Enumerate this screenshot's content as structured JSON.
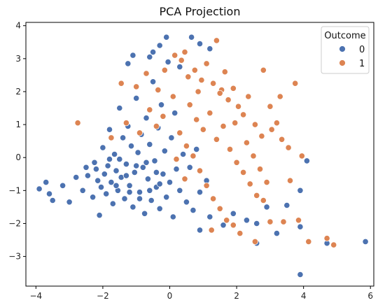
{
  "chart_data": {
    "type": "scatter",
    "title": "PCA Projection",
    "xlabel": "",
    "ylabel": "",
    "xlim": [
      -4.3,
      6.1
    ],
    "ylim": [
      -3.9,
      4.1
    ],
    "xticks": [
      -4,
      -2,
      0,
      2,
      4,
      6
    ],
    "yticks": [
      -3,
      -2,
      -1,
      0,
      1,
      2,
      3,
      4
    ],
    "grid": false,
    "legend": {
      "title": "Outcome",
      "position": "top-right"
    },
    "series": [
      {
        "name": "0",
        "color": "#4c72b0",
        "points": [
          [
            -3.9,
            -0.95
          ],
          [
            -3.7,
            -0.75
          ],
          [
            -3.6,
            -1.1
          ],
          [
            -3.5,
            -1.3
          ],
          [
            -3.2,
            -0.85
          ],
          [
            -3.0,
            -1.35
          ],
          [
            -2.8,
            -0.6
          ],
          [
            -2.6,
            -1.0
          ],
          [
            -2.5,
            -0.3
          ],
          [
            -2.45,
            -0.55
          ],
          [
            -2.3,
            -1.2
          ],
          [
            -2.25,
            -0.15
          ],
          [
            -2.15,
            -0.7
          ],
          [
            -2.1,
            -1.75
          ],
          [
            -2.05,
            -0.9
          ],
          [
            -2.0,
            0.3
          ],
          [
            -1.95,
            -0.5
          ],
          [
            -1.9,
            -1.1
          ],
          [
            -1.85,
            -0.25
          ],
          [
            -1.8,
            0.85
          ],
          [
            -1.75,
            -0.75
          ],
          [
            -1.7,
            -1.4
          ],
          [
            -1.65,
            0.1
          ],
          [
            -1.6,
            -0.4
          ],
          [
            -1.55,
            -1.0
          ],
          [
            -1.5,
            1.5
          ],
          [
            -1.45,
            -0.6
          ],
          [
            -1.4,
            0.6
          ],
          [
            -1.35,
            -1.25
          ],
          [
            -1.3,
            -0.2
          ],
          [
            -1.25,
            0.95
          ],
          [
            -1.2,
            -0.85
          ],
          [
            -1.15,
            0.35
          ],
          [
            -1.1,
            -1.5
          ],
          [
            -1.05,
            -0.45
          ],
          [
            -1.0,
            1.8
          ],
          [
            -0.95,
            0.15
          ],
          [
            -0.9,
            -1.05
          ],
          [
            -0.85,
            0.7
          ],
          [
            -0.8,
            -0.3
          ],
          [
            -0.75,
            -1.7
          ],
          [
            -0.7,
            1.2
          ],
          [
            -0.65,
            -0.65
          ],
          [
            -0.6,
            0.4
          ],
          [
            -0.55,
            -1.3
          ],
          [
            -0.5,
            2.3
          ],
          [
            -0.45,
            -0.1
          ],
          [
            -0.4,
            -0.9
          ],
          [
            -0.35,
            0.9
          ],
          [
            -0.3,
            -1.55
          ],
          [
            -0.25,
            1.6
          ],
          [
            -0.2,
            -0.5
          ],
          [
            -0.15,
            0.2
          ],
          [
            -0.1,
            -1.2
          ],
          [
            -0.05,
            2.9
          ],
          [
            0.0,
            -0.75
          ],
          [
            0.05,
            0.6
          ],
          [
            0.1,
            -1.8
          ],
          [
            0.15,
            1.35
          ],
          [
            0.2,
            -0.35
          ],
          [
            -0.1,
            3.65
          ],
          [
            -0.5,
            3.2
          ],
          [
            -0.6,
            3.05
          ],
          [
            -1.1,
            3.1
          ],
          [
            -1.25,
            2.85
          ],
          [
            -0.3,
            3.4
          ],
          [
            0.65,
            3.65
          ],
          [
            0.9,
            3.45
          ],
          [
            1.2,
            3.3
          ],
          [
            0.3,
            2.75
          ],
          [
            -1.5,
            -0.05
          ],
          [
            -1.3,
            -0.55
          ],
          [
            -1.0,
            -0.25
          ],
          [
            -0.7,
            -0.15
          ],
          [
            -0.4,
            -0.45
          ],
          [
            -1.8,
            -0.05
          ],
          [
            -2.2,
            -0.35
          ],
          [
            -1.6,
            -0.85
          ],
          [
            -1.2,
            -1.05
          ],
          [
            -0.9,
            -1.25
          ],
          [
            -0.6,
            -1.0
          ],
          [
            -0.3,
            -0.8
          ],
          [
            0.3,
            -1.0
          ],
          [
            0.5,
            -1.35
          ],
          [
            0.7,
            -1.6
          ],
          [
            0.9,
            -1.05
          ],
          [
            1.1,
            -0.7
          ],
          [
            0.6,
            -0.3
          ],
          [
            0.4,
            0.1
          ],
          [
            0.8,
            0.25
          ],
          [
            2.6,
            -2.6
          ],
          [
            2.6,
            -2.0
          ],
          [
            2.9,
            -1.5
          ],
          [
            3.2,
            -2.3
          ],
          [
            3.5,
            -1.45
          ],
          [
            3.9,
            -1.0
          ],
          [
            3.9,
            -2.1
          ],
          [
            4.1,
            -0.1
          ],
          [
            4.7,
            -2.6
          ],
          [
            5.85,
            -2.55
          ],
          [
            3.9,
            -3.55
          ],
          [
            2.3,
            -1.9
          ],
          [
            1.9,
            -1.7
          ],
          [
            1.6,
            -2.05
          ],
          [
            1.2,
            -1.8
          ],
          [
            0.9,
            -2.2
          ]
        ]
      },
      {
        "name": "1",
        "color": "#dd8452",
        "points": [
          [
            -2.75,
            1.05
          ],
          [
            -1.0,
            2.15
          ],
          [
            -0.7,
            2.55
          ],
          [
            -0.35,
            2.05
          ],
          [
            0.15,
            3.1
          ],
          [
            0.35,
            2.95
          ],
          [
            0.55,
            2.45
          ],
          [
            0.75,
            2.65
          ],
          [
            0.95,
            2.35
          ],
          [
            1.1,
            2.85
          ],
          [
            1.3,
            2.25
          ],
          [
            1.4,
            3.55
          ],
          [
            1.55,
            2.05
          ],
          [
            1.75,
            1.75
          ],
          [
            1.9,
            2.1
          ],
          [
            2.05,
            1.55
          ],
          [
            2.2,
            1.3
          ],
          [
            2.35,
            1.85
          ],
          [
            2.55,
            1.0
          ],
          [
            2.75,
            0.65
          ],
          [
            2.8,
            2.65
          ],
          [
            3.0,
            1.55
          ],
          [
            3.2,
            1.05
          ],
          [
            3.35,
            0.55
          ],
          [
            3.55,
            0.3
          ],
          [
            3.75,
            2.25
          ],
          [
            3.95,
            0.05
          ],
          [
            0.6,
            1.6
          ],
          [
            0.8,
            1.15
          ],
          [
            1.0,
            0.85
          ],
          [
            1.2,
            1.35
          ],
          [
            1.4,
            0.55
          ],
          [
            1.6,
            0.95
          ],
          [
            1.8,
            0.25
          ],
          [
            2.0,
            -0.15
          ],
          [
            2.2,
            -0.45
          ],
          [
            2.4,
            -0.8
          ],
          [
            2.6,
            -1.15
          ],
          [
            2.8,
            -1.3
          ],
          [
            3.0,
            -1.95
          ],
          [
            3.4,
            -1.95
          ],
          [
            3.85,
            -1.9
          ],
          [
            4.15,
            -2.55
          ],
          [
            4.7,
            -2.45
          ],
          [
            4.9,
            -2.65
          ],
          [
            0.3,
            0.75
          ],
          [
            0.5,
            0.35
          ],
          [
            0.7,
            0.05
          ],
          [
            0.9,
            -0.4
          ],
          [
            1.1,
            -0.85
          ],
          [
            1.3,
            -1.25
          ],
          [
            1.5,
            -1.55
          ],
          [
            1.7,
            -1.9
          ],
          [
            1.9,
            -2.05
          ],
          [
            2.1,
            -2.3
          ],
          [
            -0.2,
            1.25
          ],
          [
            0.1,
            1.85
          ],
          [
            -0.6,
            1.45
          ],
          [
            -0.9,
            0.75
          ],
          [
            -1.3,
            1.05
          ],
          [
            -1.75,
            0.6
          ],
          [
            -0.4,
            0.95
          ],
          [
            0.2,
            -0.05
          ],
          [
            0.45,
            -0.65
          ],
          [
            1.5,
            1.95
          ],
          [
            2.3,
            0.45
          ],
          [
            2.5,
            0.05
          ],
          [
            1.25,
            -2.2
          ],
          [
            2.55,
            -2.55
          ],
          [
            3.3,
            1.85
          ],
          [
            3.05,
            0.85
          ],
          [
            2.7,
            -0.35
          ],
          [
            1.95,
            1.05
          ],
          [
            0.85,
            2.0
          ],
          [
            1.65,
            2.6
          ],
          [
            -0.15,
            2.65
          ],
          [
            0.45,
            3.2
          ],
          [
            2.9,
            -0.75
          ],
          [
            3.6,
            -0.7
          ],
          [
            -1.45,
            2.25
          ]
        ]
      }
    ]
  }
}
